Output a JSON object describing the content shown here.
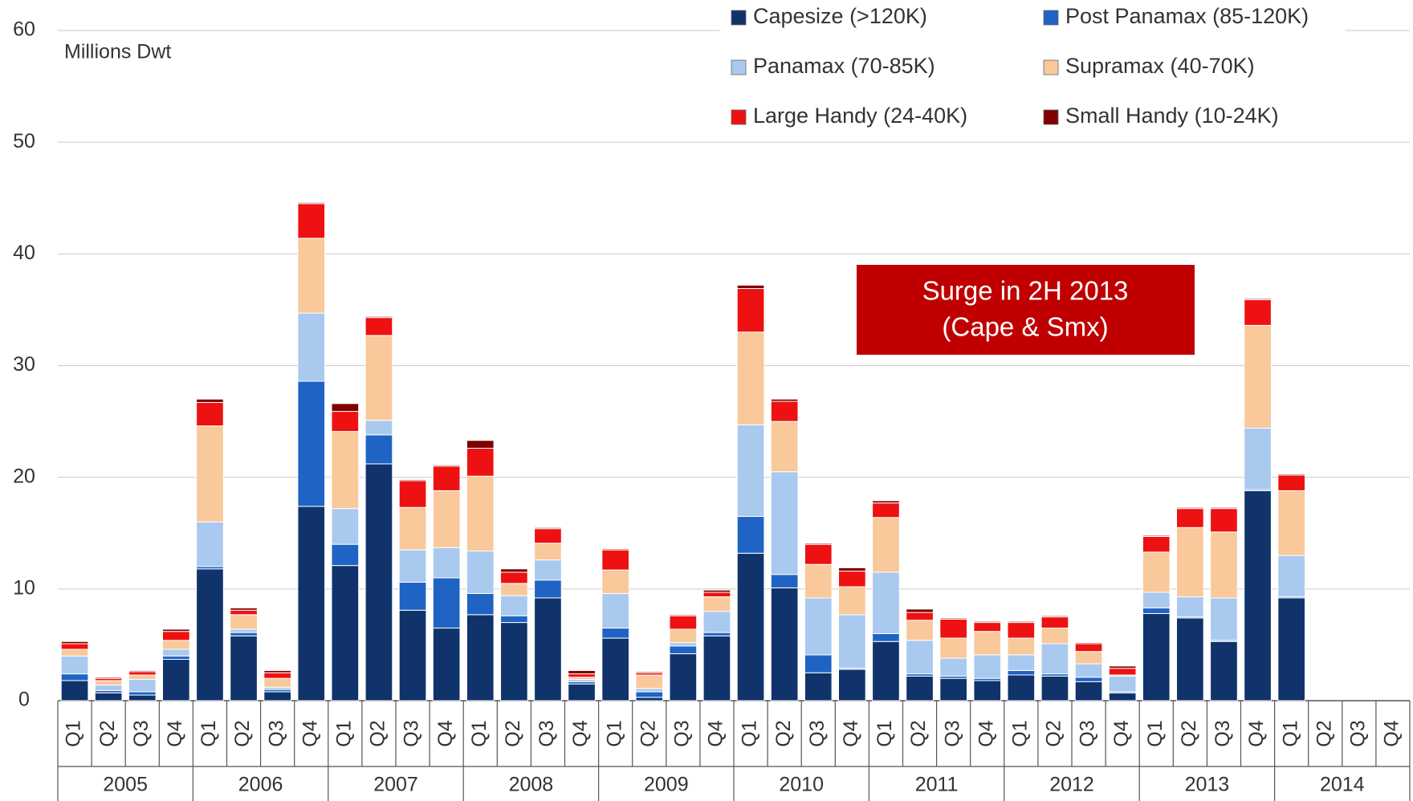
{
  "chart_data": {
    "type": "stacked_bar",
    "y_label": "Millions Dwt",
    "annotation": [
      "Surge in 2H 2013",
      "(Cape & Smx)"
    ],
    "categories": [
      "Q1",
      "Q2",
      "Q3",
      "Q4",
      "Q1",
      "Q2",
      "Q3",
      "Q4",
      "Q1",
      "Q2",
      "Q3",
      "Q4",
      "Q1",
      "Q2",
      "Q3",
      "Q4",
      "Q1",
      "Q2",
      "Q3",
      "Q4",
      "Q1",
      "Q2",
      "Q3",
      "Q4",
      "Q1",
      "Q2",
      "Q3",
      "Q4",
      "Q1",
      "Q2",
      "Q3",
      "Q4",
      "Q1",
      "Q2",
      "Q3",
      "Q4",
      "Q1",
      "Q2",
      "Q3",
      "Q4"
    ],
    "years": [
      "2005",
      "2006",
      "2007",
      "2008",
      "2009",
      "2010",
      "2011",
      "2012",
      "2013",
      "2014"
    ],
    "ylim": [
      0,
      60
    ],
    "yticks": [
      0,
      10,
      20,
      30,
      40,
      50,
      60
    ],
    "grid": true,
    "legend": "top-right",
    "series": [
      {
        "name": "Capesize (>120K)",
        "color": "#10336b",
        "values": [
          1.8,
          0.7,
          0.5,
          3.7,
          11.8,
          5.8,
          0.8,
          17.4,
          12.1,
          21.2,
          8.1,
          6.5,
          7.7,
          7.0,
          9.2,
          1.5,
          5.6,
          0.3,
          4.2,
          5.8,
          13.2,
          10.1,
          2.5,
          2.8,
          5.3,
          2.2,
          2.0,
          1.8,
          2.3,
          2.2,
          1.7,
          0.7,
          7.8,
          7.4,
          5.3,
          18.8,
          9.2,
          null,
          null,
          null
        ]
      },
      {
        "name": "Post Panamax (85-120K)",
        "color": "#1f64c4",
        "values": [
          0.6,
          0.2,
          0.3,
          0.3,
          0.2,
          0.3,
          0.2,
          11.2,
          1.9,
          2.6,
          2.5,
          4.5,
          1.9,
          0.6,
          1.6,
          0.2,
          0.9,
          0.5,
          0.7,
          0.3,
          3.3,
          1.2,
          1.6,
          0.1,
          0.7,
          0.2,
          0.2,
          0.2,
          0.4,
          0.2,
          0.4,
          0.1,
          0.5,
          0.1,
          0.1,
          0.1,
          0.1,
          null,
          null,
          null
        ]
      },
      {
        "name": "Panamax (70-85K)",
        "color": "#a9c9ef",
        "values": [
          1.6,
          0.5,
          1.1,
          0.6,
          4.0,
          0.3,
          0.2,
          6.1,
          3.2,
          1.3,
          2.9,
          2.7,
          3.8,
          1.8,
          1.8,
          0.2,
          3.1,
          0.3,
          0.3,
          1.9,
          8.2,
          9.2,
          5.1,
          4.8,
          5.5,
          3.0,
          1.6,
          2.1,
          1.4,
          2.7,
          1.2,
          1.4,
          1.4,
          1.8,
          3.8,
          5.5,
          3.7,
          null,
          null,
          null
        ]
      },
      {
        "name": "Supramax (40-70K)",
        "color": "#f9c89b",
        "values": [
          0.6,
          0.4,
          0.4,
          0.8,
          8.6,
          1.3,
          0.8,
          6.7,
          6.9,
          7.6,
          3.8,
          5.1,
          6.7,
          1.1,
          1.5,
          0.2,
          2.1,
          1.2,
          1.2,
          1.3,
          8.3,
          4.5,
          3.0,
          2.5,
          4.9,
          1.8,
          1.8,
          2.1,
          1.5,
          1.4,
          1.1,
          0.1,
          3.6,
          6.2,
          5.9,
          9.2,
          5.8,
          null,
          null,
          null
        ]
      },
      {
        "name": "Large Handy (24-40K)",
        "color": "#ee1111",
        "values": [
          0.5,
          0.2,
          0.3,
          0.8,
          2.1,
          0.4,
          0.5,
          3.1,
          1.8,
          1.6,
          2.4,
          2.2,
          2.5,
          1.0,
          1.3,
          0.3,
          1.8,
          0.2,
          1.2,
          0.4,
          3.9,
          1.8,
          1.8,
          1.4,
          1.3,
          0.7,
          1.7,
          0.8,
          1.4,
          1.0,
          0.7,
          0.6,
          1.4,
          1.7,
          2.1,
          2.3,
          1.4,
          null,
          null,
          null
        ]
      },
      {
        "name": "Small Handy (10-24K)",
        "color": "#800000",
        "values": [
          0.2,
          0.1,
          0.1,
          0.2,
          0.3,
          0.2,
          0.2,
          0.1,
          0.7,
          0.1,
          0.1,
          0.1,
          0.7,
          0.3,
          0.1,
          0.3,
          0.1,
          0.1,
          0.1,
          0.2,
          0.3,
          0.2,
          0.1,
          0.3,
          0.2,
          0.3,
          0.1,
          0.1,
          0.1,
          0.1,
          0.1,
          0.2,
          0.1,
          0.1,
          0.1,
          0.1,
          0.1,
          null,
          null,
          null
        ]
      }
    ]
  }
}
